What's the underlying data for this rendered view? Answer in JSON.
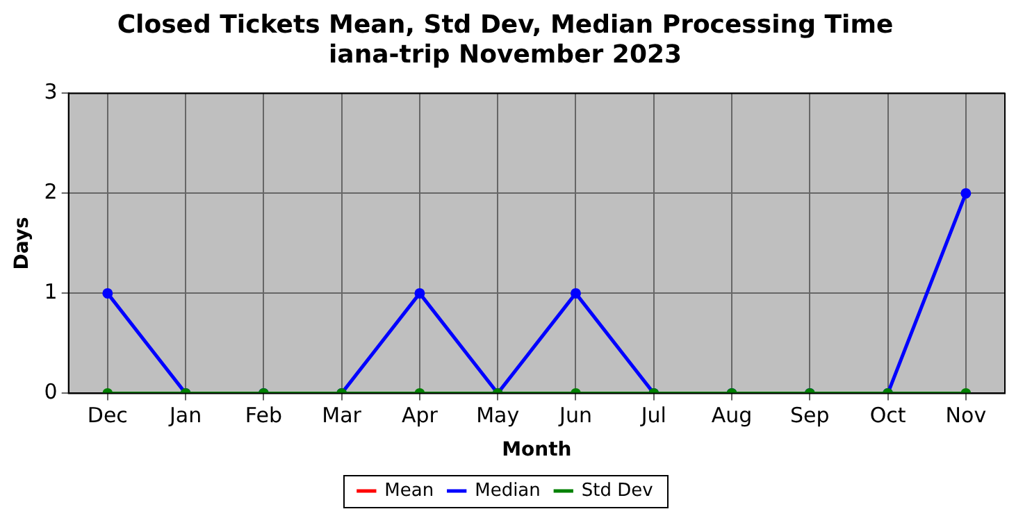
{
  "chart_data": {
    "type": "line",
    "title": "Closed Tickets Mean, Std Dev, Median Processing Time",
    "subtitle": "iana-trip November 2023",
    "xlabel": "Month",
    "ylabel": "Days",
    "categories": [
      "Dec",
      "Jan",
      "Feb",
      "Mar",
      "Apr",
      "May",
      "Jun",
      "Jul",
      "Aug",
      "Sep",
      "Oct",
      "Nov"
    ],
    "series": [
      {
        "name": "Mean",
        "color": "#ff0000",
        "values": [
          null,
          null,
          null,
          null,
          null,
          null,
          null,
          null,
          null,
          null,
          null,
          null
        ]
      },
      {
        "name": "Median",
        "color": "#0000ff",
        "values": [
          1,
          0,
          0,
          0,
          1,
          0,
          1,
          0,
          0,
          0,
          0,
          2
        ]
      },
      {
        "name": "Std Dev",
        "color": "#008000",
        "values": [
          0,
          0,
          0,
          0,
          0,
          0,
          0,
          0,
          0,
          0,
          0,
          0
        ]
      }
    ],
    "ylim": [
      0,
      3
    ],
    "yticks": [
      0,
      1,
      2,
      3
    ],
    "grid": true,
    "legend": "bottom",
    "marker": "circle",
    "line_style": "solid"
  }
}
